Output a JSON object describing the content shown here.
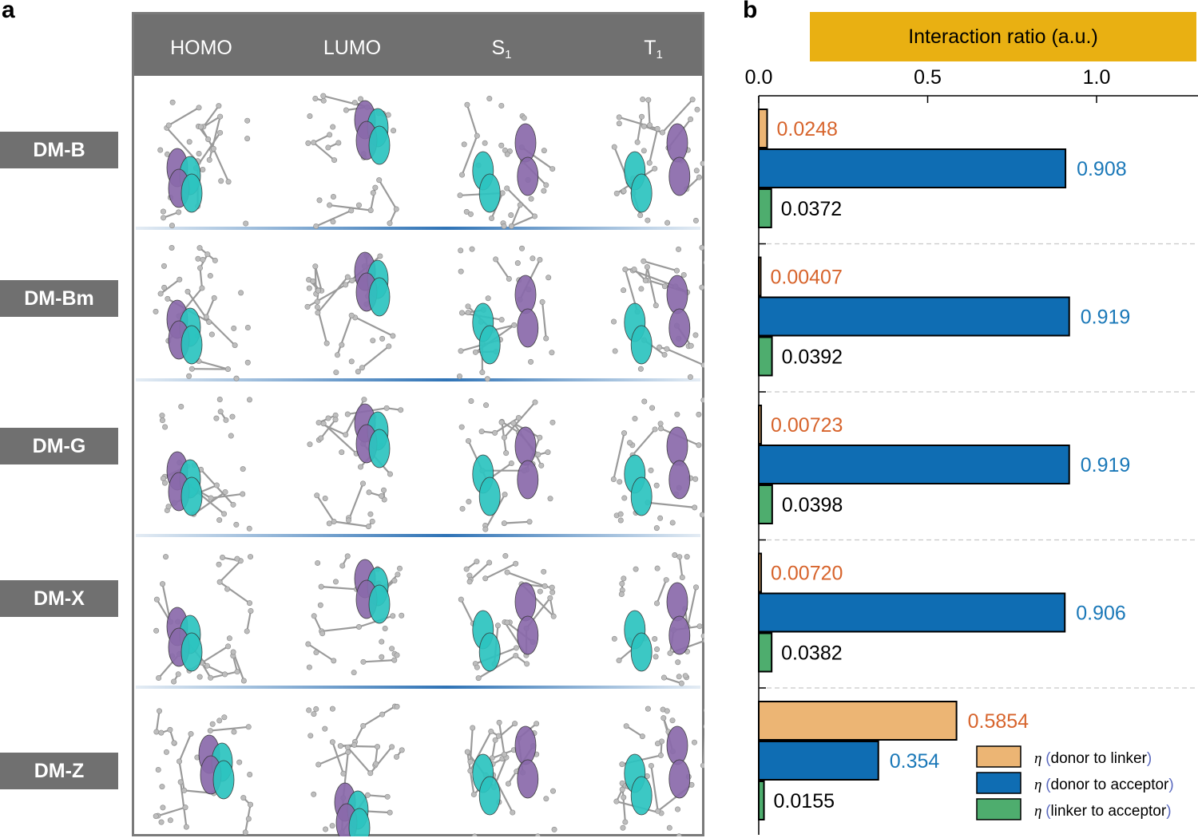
{
  "panel_a": {
    "letter": "a",
    "columns": [
      {
        "label": "HOMO",
        "sub": ""
      },
      {
        "label": "LUMO",
        "sub": ""
      },
      {
        "label": "S",
        "sub": "1"
      },
      {
        "label": "T",
        "sub": "1"
      }
    ],
    "rows": [
      "DM-B",
      "DM-Bm",
      "DM-G",
      "DM-X",
      "DM-Z"
    ]
  },
  "panel_b": {
    "letter": "b",
    "header": "Interaction ratio (a.u.)"
  },
  "colors": {
    "donor_to_linker": "#ecb574",
    "donor_to_acceptor": "#0f6db3",
    "linker_to_acceptor": "#4ead6e",
    "orange_text": "#d7642c",
    "blue_text": "#1a78b8",
    "header_gray": "#707070",
    "header_gold": "#e9b012",
    "orbital_cyan": "#2cc4c0",
    "orbital_purple": "#8a6aab"
  },
  "chart_data": {
    "type": "bar",
    "orientation": "horizontal",
    "title": "Interaction ratio (a.u.)",
    "xlim": [
      0,
      1.3
    ],
    "xticks": [
      0.0,
      0.5,
      1.0
    ],
    "xtick_labels": [
      "0.0",
      "0.5",
      "1.0"
    ],
    "categories": [
      "DM-B",
      "DM-Bm",
      "DM-G",
      "DM-X",
      "DM-Z"
    ],
    "series": [
      {
        "name": "donor to linker",
        "values": [
          0.0248,
          0.00407,
          0.00723,
          0.0072,
          0.5854
        ],
        "labels": [
          "0.0248",
          "0.00407",
          "0.00723",
          "0.00720",
          "0.5854"
        ]
      },
      {
        "name": "donor to acceptor",
        "values": [
          0.908,
          0.919,
          0.919,
          0.906,
          0.354
        ],
        "labels": [
          "0.908",
          "0.919",
          "0.919",
          "0.906",
          "0.354"
        ]
      },
      {
        "name": "linker to acceptor",
        "values": [
          0.0372,
          0.0392,
          0.0398,
          0.0382,
          0.0155
        ],
        "labels": [
          "0.0372",
          "0.0392",
          "0.0398",
          "0.0382",
          "0.0155"
        ]
      }
    ],
    "legend": {
      "position": "bottom-right",
      "symbol": "η",
      "entries": [
        "donor to linker",
        "donor to acceptor",
        "linker to acceptor"
      ]
    }
  }
}
